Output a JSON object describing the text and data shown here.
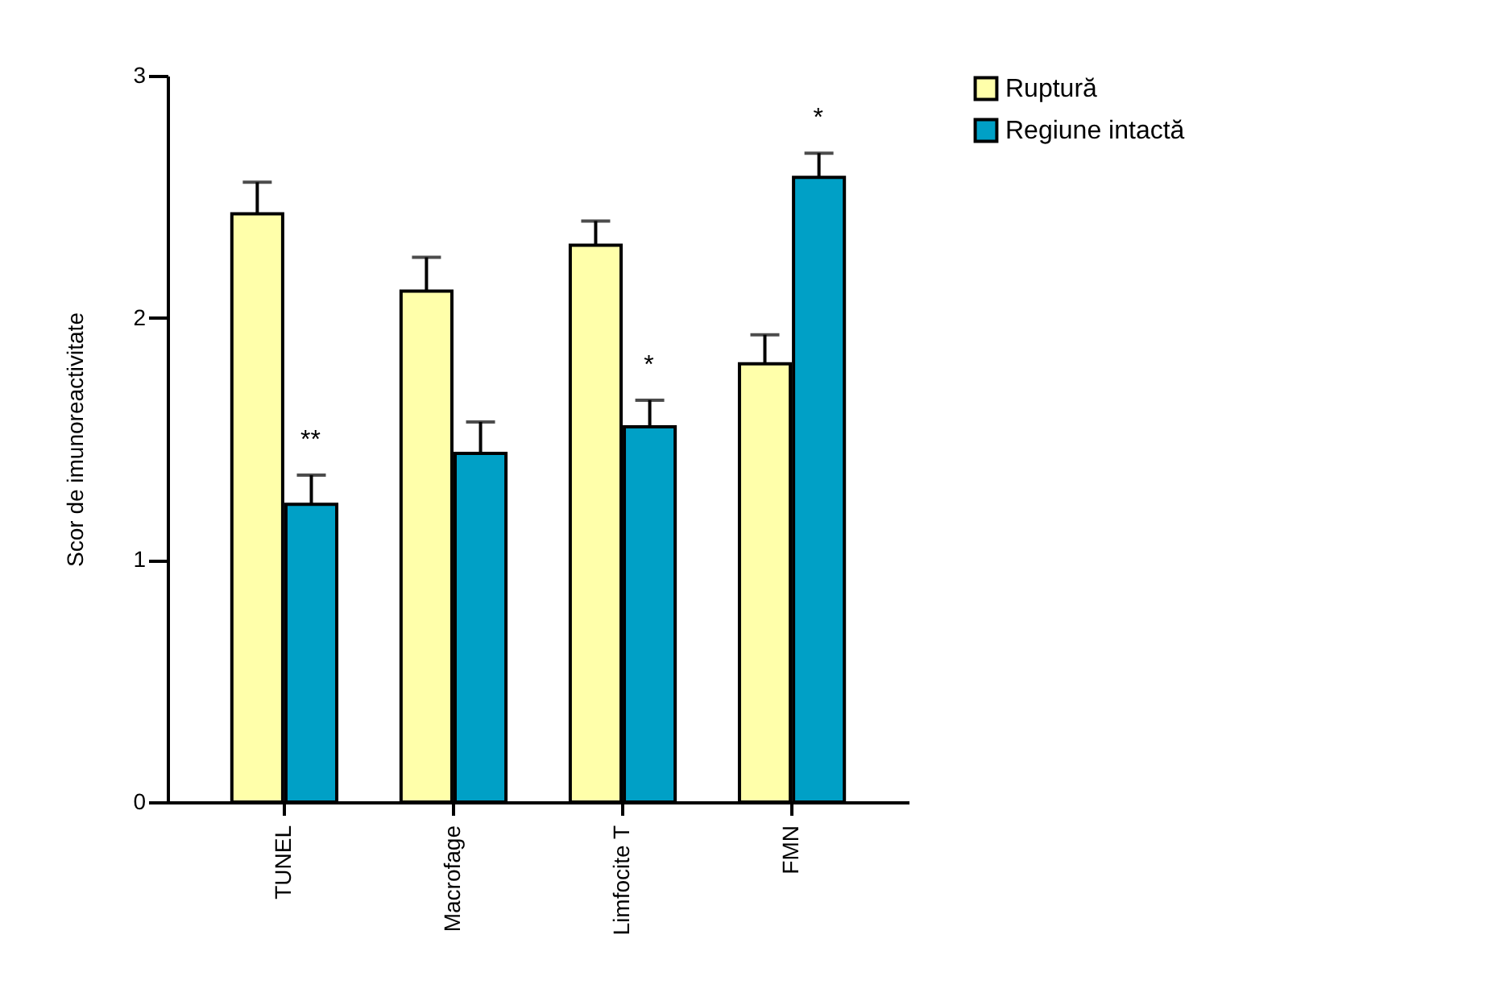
{
  "chart_data": {
    "type": "bar",
    "ylabel": "Scor de imunoreactivitate",
    "categories": [
      "TUNEL",
      "Macrofage",
      "Limfocite T",
      "FMN"
    ],
    "series": [
      {
        "name": "Ruptură",
        "color": "#ffffaa",
        "values": [
          2.43,
          2.11,
          2.3,
          1.81
        ],
        "errors": [
          0.13,
          0.14,
          0.1,
          0.12
        ]
      },
      {
        "name": "Regiune intactă",
        "color": "#00a0c6",
        "values": [
          1.23,
          1.44,
          1.55,
          2.58
        ],
        "errors": [
          0.12,
          0.13,
          0.11,
          0.1
        ]
      }
    ],
    "annotations": [
      {
        "text": "**",
        "x": "TUNEL",
        "y": 1.23
      },
      {
        "text": "*",
        "x": "Limfocite T",
        "y": 1.55
      },
      {
        "text": "*",
        "x": "FMN",
        "y": 2.58
      }
    ],
    "ylim": [
      0,
      3
    ],
    "yticks": [
      0,
      1,
      2,
      3
    ],
    "grid": false,
    "legend": "right"
  }
}
